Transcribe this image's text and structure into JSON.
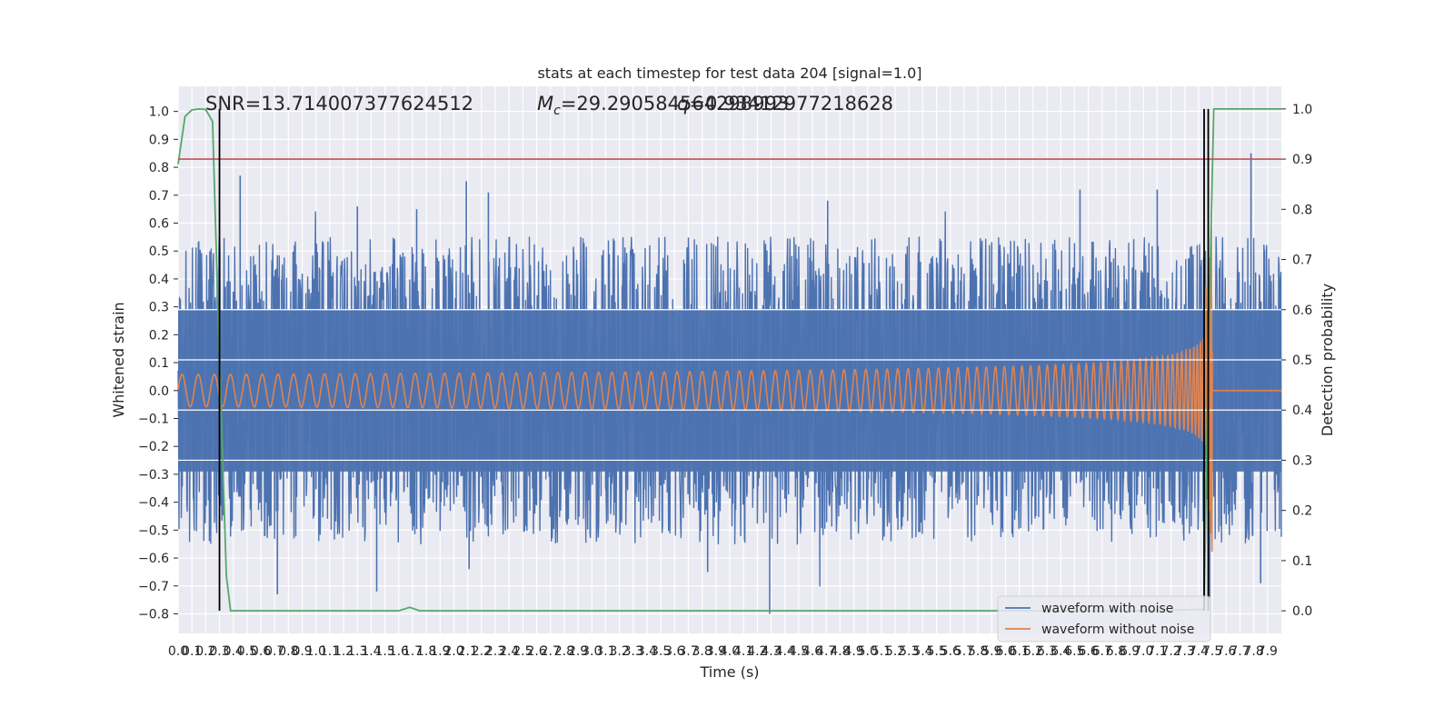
{
  "chart_data": {
    "type": "line",
    "title": "stats at each timestep for test data 204 [signal=1.0]",
    "xlabel": "Time (s)",
    "ylabel": "Whitened strain",
    "y2label": "Detection probability",
    "xlim": [
      0.0,
      8.0
    ],
    "ylim": [
      -0.87,
      1.09
    ],
    "y2lim": [
      -0.045,
      1.045
    ],
    "xticks": [
      0.0,
      0.1,
      0.2,
      0.3,
      0.4,
      0.5,
      0.6,
      0.7,
      0.8,
      0.9,
      1.0,
      1.1,
      1.2,
      1.3,
      1.4,
      1.5,
      1.6,
      1.7,
      1.8,
      1.9,
      2.0,
      2.1,
      2.2,
      2.3,
      2.4,
      2.5,
      2.6,
      2.7,
      2.8,
      2.9,
      3.0,
      3.1,
      3.2,
      3.3,
      3.4,
      3.5,
      3.6,
      3.7,
      3.8,
      3.9,
      4.0,
      4.1,
      4.2,
      4.3,
      4.4,
      4.5,
      4.6,
      4.7,
      4.8,
      4.9,
      5.0,
      5.1,
      5.2,
      5.3,
      5.4,
      5.5,
      5.6,
      5.7,
      5.8,
      5.9,
      6.0,
      6.1,
      6.2,
      6.3,
      6.4,
      6.5,
      6.6,
      6.7,
      6.8,
      6.9,
      7.0,
      7.1,
      7.2,
      7.3,
      7.4,
      7.5,
      7.6,
      7.7,
      7.8,
      7.9
    ],
    "yticks": [
      -0.8,
      -0.7,
      -0.6,
      -0.5,
      -0.4,
      -0.3,
      -0.2,
      -0.1,
      0.0,
      0.1,
      0.2,
      0.3,
      0.4,
      0.5,
      0.6,
      0.7,
      0.8,
      0.9,
      1.0
    ],
    "y2ticks": [
      0.0,
      0.1,
      0.2,
      0.3,
      0.4,
      0.5,
      0.6,
      0.7,
      0.8,
      0.9,
      1.0
    ],
    "grid": true,
    "legend_position": "lower-right",
    "series": [
      {
        "name": "waveform with noise",
        "color": "#4c72b0",
        "axis": "left",
        "kind": "noise",
        "envelope_typical": 0.45,
        "peaks": [
          {
            "x": 0.45,
            "y": 0.77
          },
          {
            "x": 1.3,
            "y": 0.66
          },
          {
            "x": 1.73,
            "y": 0.65
          },
          {
            "x": 2.09,
            "y": 0.75
          },
          {
            "x": 2.25,
            "y": 0.71
          },
          {
            "x": 4.71,
            "y": 0.68
          },
          {
            "x": 6.54,
            "y": 0.72
          },
          {
            "x": 7.1,
            "y": 0.72
          },
          {
            "x": 7.78,
            "y": 0.85
          },
          {
            "x": 1.44,
            "y": -0.72
          },
          {
            "x": 0.72,
            "y": -0.73
          },
          {
            "x": 2.11,
            "y": -0.64
          },
          {
            "x": 3.84,
            "y": -0.65
          },
          {
            "x": 4.29,
            "y": -0.8
          },
          {
            "x": 7.85,
            "y": -0.69
          },
          {
            "x": 7.48,
            "y": -0.74
          }
        ]
      },
      {
        "name": "waveform without noise",
        "color": "#dd8452",
        "axis": "left",
        "kind": "chirp",
        "merger_time": 7.5,
        "peak_amplitude": 0.69,
        "start_time": 0.0
      },
      {
        "name": "detection probability",
        "color": "#55a868",
        "axis": "right",
        "x": [
          0.0,
          0.05,
          0.1,
          0.15,
          0.2,
          0.25,
          0.3,
          0.35,
          0.38,
          0.43,
          0.5,
          1.0,
          1.6,
          1.68,
          1.75,
          1.8,
          2.0,
          4.0,
          6.0,
          7.0,
          7.44,
          7.47,
          7.51,
          7.6,
          8.0
        ],
        "y": [
          0.89,
          0.985,
          0.998,
          1.0,
          0.999,
          0.975,
          0.5,
          0.07,
          0.0,
          0.0,
          0.0,
          0.0,
          0.0,
          0.007,
          0.0,
          0.0,
          0.0,
          0.0,
          0.0,
          0.0,
          0.003,
          0.5,
          1.0,
          1.0,
          1.0
        ]
      }
    ],
    "threshold": {
      "axis": "right",
      "value": 0.9,
      "color": "#c44e52"
    },
    "vlines": [
      {
        "x": 0.3,
        "y_from": 0.0,
        "y_to": 1.0,
        "axis": "right",
        "color": "#000000"
      },
      {
        "x": 7.44,
        "y_from": 0.0,
        "y_to": 1.0,
        "axis": "right",
        "color": "#000000"
      },
      {
        "x": 7.47,
        "y_from": 0.0,
        "y_to": 1.0,
        "axis": "right",
        "color": "#000000"
      }
    ],
    "annotations": [
      {
        "text": "SNR=13.714007377624512",
        "x": 0.2,
        "y": 1.0
      },
      {
        "text": "M_c=29.290584564298993",
        "x": 2.6,
        "y": 1.0
      },
      {
        "text": "q=0.9341297721862 8",
        "x": 3.6,
        "y": 1.0
      }
    ],
    "annotation_text": {
      "snr": "SNR=13.714007377624512",
      "mc_prefix": "M",
      "mc_sub": "c",
      "mc_value": "=29.290584564298993",
      "q": "=0.93412977218628",
      "q_overlap": "564"
    }
  }
}
